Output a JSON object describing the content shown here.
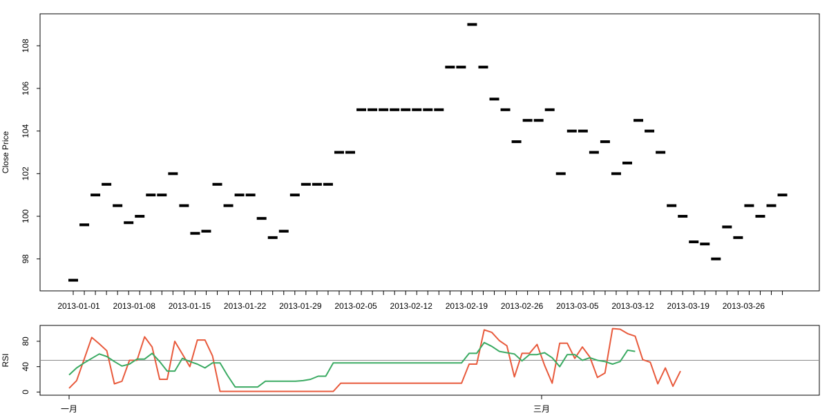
{
  "chart_data": [
    {
      "type": "scatter",
      "marker": "dash",
      "ylabel": "Close Price",
      "ylim": [
        96.5,
        109.5
      ],
      "y_ticks": [
        "98",
        "100",
        "102",
        "104",
        "106",
        "108"
      ],
      "x_ticks": [
        "2013-01-01",
        "2013-01-08",
        "2013-01-15",
        "2013-01-22",
        "2013-01-29",
        "2013-02-05",
        "2013-02-12",
        "2013-02-19",
        "2013-02-26",
        "2013-03-05",
        "2013-03-12",
        "2013-03-19",
        "2013-03-26"
      ],
      "series": [
        {
          "color": "#000000",
          "values": [
            97.0,
            99.6,
            101.0,
            101.5,
            100.5,
            99.7,
            100.0,
            101.0,
            101.0,
            102.0,
            100.5,
            99.2,
            99.3,
            101.5,
            100.5,
            101.0,
            101.0,
            99.9,
            99.0,
            99.3,
            101.0,
            101.5,
            101.5,
            101.5,
            103.0,
            103.0,
            105.0,
            105.0,
            105.0,
            105.0,
            105.0,
            105.0,
            105.0,
            105.0,
            107.0,
            107.0,
            109.0,
            107.0,
            105.5,
            105.0,
            103.5,
            104.5,
            104.5,
            105.0,
            102.0,
            104.0,
            104.0,
            103.0,
            103.5,
            102.0,
            102.5,
            104.5,
            104.0,
            103.0,
            100.5,
            100.0,
            98.8,
            98.7,
            98.0,
            99.5,
            99.0,
            100.5,
            100.0,
            100.5,
            101.0
          ]
        }
      ],
      "grid": false
    },
    {
      "type": "line",
      "ylabel": "RSI",
      "ylim": [
        -5,
        105
      ],
      "y_ticks": [
        "0",
        "40",
        "80"
      ],
      "x_ticks": [
        "一月",
        "三月"
      ],
      "reference_line": 50,
      "series": [
        {
          "color": "#e8593b",
          "values": [
            6,
            18,
            52,
            86,
            76,
            65,
            13,
            17,
            50,
            50,
            87,
            71,
            20,
            20,
            80,
            60,
            40,
            82,
            82,
            57,
            1,
            1,
            1,
            1,
            1,
            1,
            1,
            1,
            1,
            1,
            1,
            1,
            1,
            1,
            1,
            1,
            14,
            14,
            14,
            14,
            14,
            14,
            14,
            14,
            14,
            14,
            14,
            14,
            14,
            14,
            14,
            14,
            14,
            44,
            44,
            98,
            94,
            81,
            73,
            24,
            61,
            61,
            75,
            42,
            14,
            77,
            77,
            53,
            71,
            55,
            23,
            30,
            100,
            99,
            92,
            88,
            51,
            47,
            13,
            38,
            9,
            33
          ]
        },
        {
          "color": "#3aaa62",
          "values": [
            27,
            38,
            46,
            53,
            60,
            56,
            48,
            41,
            44,
            52,
            52,
            61,
            48,
            33,
            33,
            53,
            48,
            44,
            38,
            46,
            46,
            26,
            8,
            8,
            8,
            8,
            17,
            17,
            17,
            17,
            17,
            18,
            20,
            25,
            25,
            46,
            46,
            46,
            46,
            46,
            46,
            46,
            46,
            46,
            46,
            46,
            46,
            46,
            46,
            46,
            46,
            46,
            46,
            61,
            61,
            78,
            72,
            64,
            62,
            60,
            49,
            59,
            59,
            62,
            54,
            40,
            59,
            59,
            50,
            54,
            50,
            48,
            44,
            48,
            66,
            64
          ]
        }
      ],
      "grid": false
    }
  ]
}
